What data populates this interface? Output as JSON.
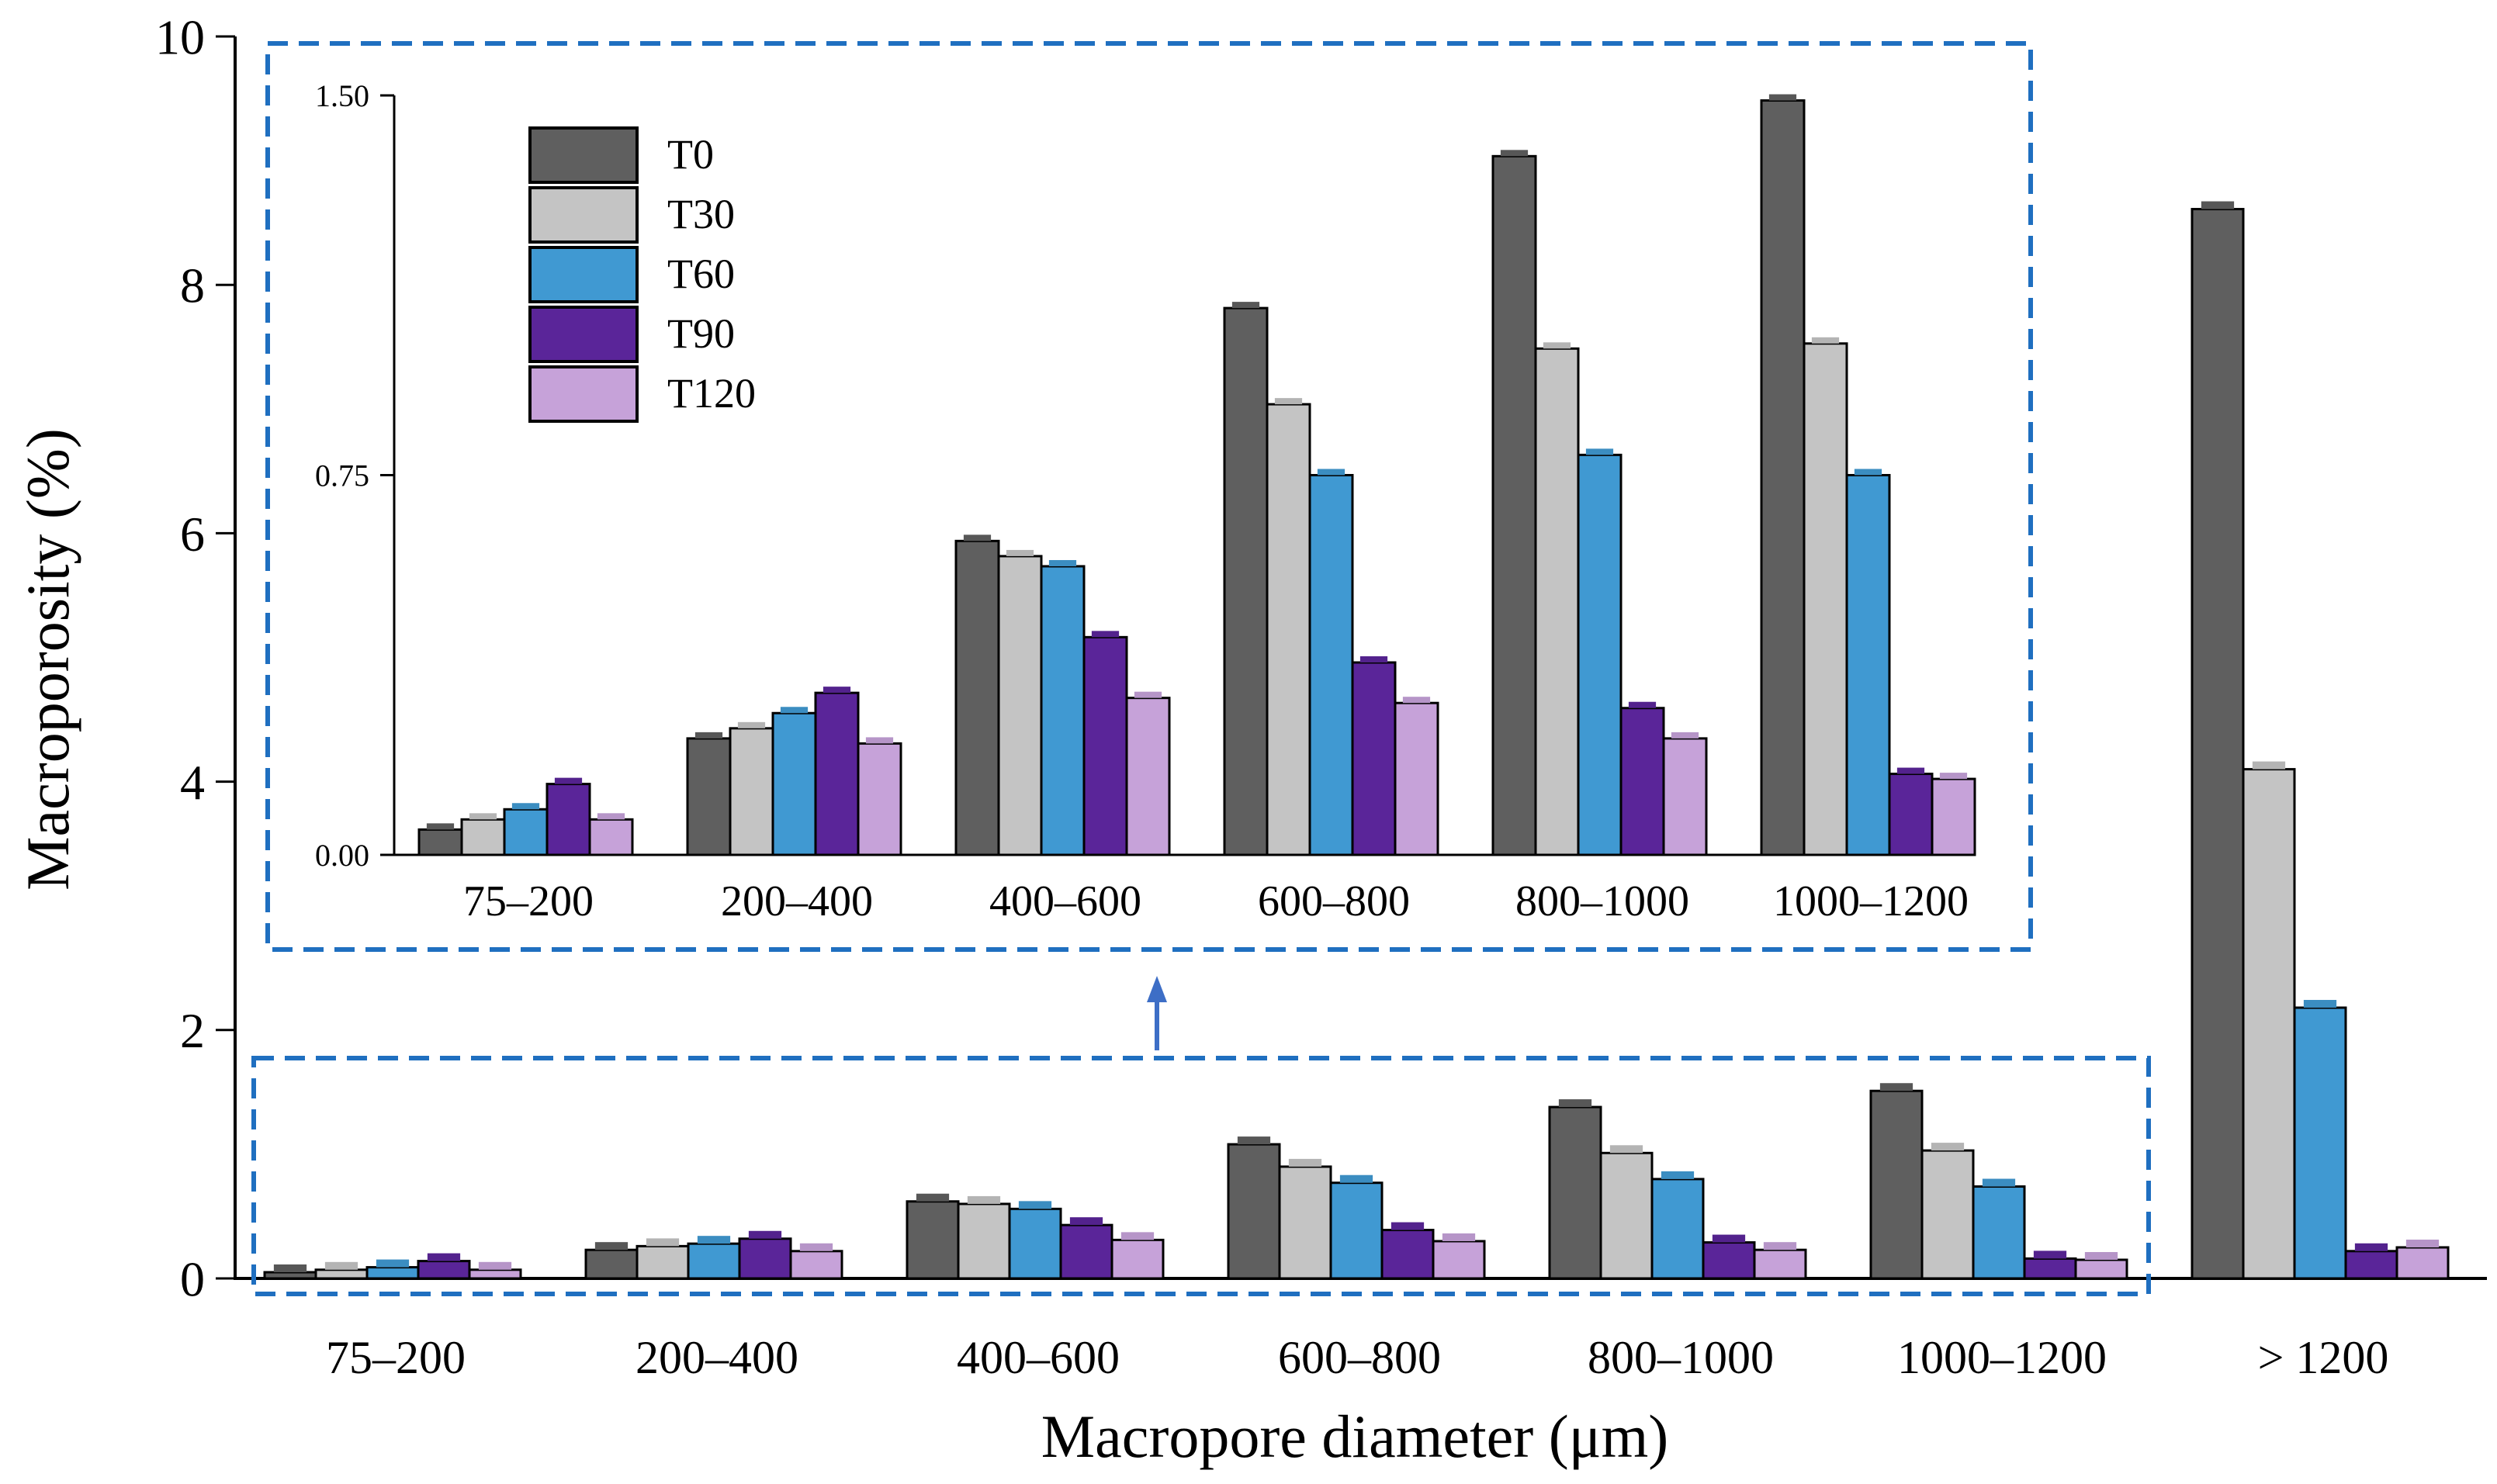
{
  "chart_data": [
    {
      "id": "main",
      "type": "bar",
      "xlabel": "Macropore diameter (μm)",
      "ylabel": "Macroporosity (%)",
      "ylim": [
        0,
        10
      ],
      "yticks": [
        "0",
        "2",
        "4",
        "6",
        "8",
        "10"
      ],
      "categories": [
        "75–200",
        "200–400",
        "400–600",
        "600–800",
        "800–1000",
        "1000–1200",
        "> 1200"
      ],
      "series": [
        {
          "name": "T0",
          "color": "#5f5f5f",
          "values": [
            0.05,
            0.23,
            0.62,
            1.08,
            1.38,
            1.51,
            8.61
          ]
        },
        {
          "name": "T30",
          "color": "#c4c4c4",
          "values": [
            0.07,
            0.26,
            0.6,
            0.9,
            1.01,
            1.03,
            4.1
          ]
        },
        {
          "name": "T60",
          "color": "#4099d2",
          "values": [
            0.09,
            0.28,
            0.56,
            0.77,
            0.8,
            0.74,
            2.18
          ]
        },
        {
          "name": "T90",
          "color": "#5a2599",
          "values": [
            0.14,
            0.32,
            0.43,
            0.39,
            0.29,
            0.16,
            0.22
          ]
        },
        {
          "name": "T120",
          "color": "#c6a2d9",
          "values": [
            0.07,
            0.22,
            0.31,
            0.3,
            0.23,
            0.15,
            0.25
          ]
        }
      ]
    },
    {
      "id": "inset",
      "type": "bar",
      "ylim": [
        0,
        1.5
      ],
      "yticks": [
        "0.00",
        "0.75",
        "1.50"
      ],
      "categories": [
        "75–200",
        "200–400",
        "400–600",
        "600–800",
        "800–1000",
        "1000–1200"
      ],
      "series": [
        {
          "name": "T0",
          "values": [
            0.05,
            0.23,
            0.62,
            1.08,
            1.38,
            1.49
          ]
        },
        {
          "name": "T30",
          "values": [
            0.07,
            0.25,
            0.59,
            0.89,
            1.0,
            1.01
          ]
        },
        {
          "name": "T60",
          "values": [
            0.09,
            0.28,
            0.57,
            0.75,
            0.79,
            0.75
          ]
        },
        {
          "name": "T90",
          "values": [
            0.14,
            0.32,
            0.43,
            0.38,
            0.29,
            0.16
          ]
        },
        {
          "name": "T120",
          "values": [
            0.07,
            0.22,
            0.31,
            0.3,
            0.23,
            0.15
          ]
        }
      ],
      "legend": [
        "T0",
        "T30",
        "T60",
        "T90",
        "T120"
      ]
    }
  ]
}
